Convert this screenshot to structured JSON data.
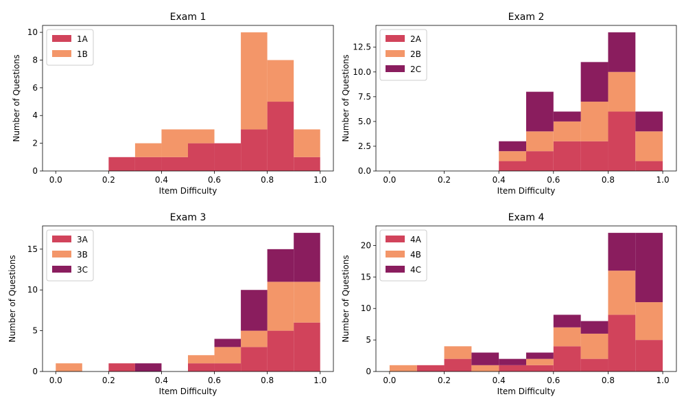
{
  "chart_data": [
    {
      "type": "histogram",
      "title": "Exam 1",
      "xlabel": "Item Difficulty",
      "ylabel": "Number of Questions",
      "bins": [
        0,
        0.1,
        0.2,
        0.3,
        0.4,
        0.5,
        0.6,
        0.7,
        0.8,
        0.9,
        1.0
      ],
      "series": [
        {
          "name": "1A",
          "color": "#d1435b",
          "values": [
            0,
            0,
            1,
            1,
            1,
            2,
            2,
            3,
            5,
            1
          ]
        },
        {
          "name": "1B",
          "color": "#f39669",
          "values": [
            0,
            0,
            0,
            1,
            2,
            1,
            0,
            7,
            3,
            2
          ]
        }
      ],
      "xlim": [
        -0.05,
        1.05
      ],
      "xticks": [
        {
          "value": 0,
          "label": "0.0"
        },
        0.2,
        0.4,
        0.6,
        0.8,
        {
          "value": 1,
          "label": "1.0"
        }
      ],
      "ylim": [
        0,
        10.5
      ],
      "yticks": [
        0,
        2,
        4,
        6,
        8,
        10
      ],
      "legend": "upper left"
    },
    {
      "type": "histogram",
      "title": "Exam 2",
      "xlabel": "Item Difficulty",
      "ylabel": "Number of Questions",
      "bins": [
        0,
        0.1,
        0.2,
        0.3,
        0.4,
        0.5,
        0.6,
        0.7,
        0.8,
        0.9,
        1.0
      ],
      "series": [
        {
          "name": "2A",
          "color": "#d1435b",
          "values": [
            0,
            0,
            0,
            0,
            1,
            2,
            3,
            3,
            6,
            1
          ]
        },
        {
          "name": "2B",
          "color": "#f39669",
          "values": [
            0,
            0,
            0,
            0,
            1,
            2,
            2,
            4,
            4,
            3
          ]
        },
        {
          "name": "2C",
          "color": "#8a1d5e",
          "values": [
            0,
            0,
            0,
            0,
            1,
            4,
            1,
            4,
            4,
            2
          ]
        }
      ],
      "xlim": [
        -0.05,
        1.05
      ],
      "xticks": [
        {
          "value": 0,
          "label": "0.0"
        },
        0.2,
        0.4,
        0.6,
        0.8,
        {
          "value": 1,
          "label": "1.0"
        }
      ],
      "ylim": [
        0,
        14.7
      ],
      "yticks": [
        {
          "value": 0,
          "label": "0.0"
        },
        2.5,
        {
          "value": 5,
          "label": "5.0"
        },
        7.5,
        {
          "value": 10,
          "label": "10.0"
        },
        12.5
      ],
      "legend": "upper left"
    },
    {
      "type": "histogram",
      "title": "Exam 3",
      "xlabel": "Item Difficulty",
      "ylabel": "Number of Questions",
      "bins": [
        0,
        0.1,
        0.2,
        0.3,
        0.4,
        0.5,
        0.6,
        0.7,
        0.8,
        0.9,
        1.0
      ],
      "series": [
        {
          "name": "3A",
          "color": "#d1435b",
          "values": [
            0,
            0,
            1,
            0,
            0,
            1,
            1,
            3,
            5,
            6
          ]
        },
        {
          "name": "3B",
          "color": "#f39669",
          "values": [
            1,
            0,
            0,
            0,
            0,
            1,
            2,
            2,
            6,
            5
          ]
        },
        {
          "name": "3C",
          "color": "#8a1d5e",
          "values": [
            0,
            0,
            0,
            1,
            0,
            0,
            1,
            5,
            4,
            6
          ]
        }
      ],
      "xlim": [
        -0.05,
        1.05
      ],
      "xticks": [
        {
          "value": 0,
          "label": "0.0"
        },
        0.2,
        0.4,
        0.6,
        0.8,
        {
          "value": 1,
          "label": "1.0"
        }
      ],
      "ylim": [
        0,
        17.85
      ],
      "yticks": [
        0,
        5,
        10,
        15
      ],
      "legend": "upper left"
    },
    {
      "type": "histogram",
      "title": "Exam 4",
      "xlabel": "Item Difficulty",
      "ylabel": "Number of Questions",
      "bins": [
        0,
        0.1,
        0.2,
        0.3,
        0.4,
        0.5,
        0.6,
        0.7,
        0.8,
        0.9,
        1.0
      ],
      "series": [
        {
          "name": "4A",
          "color": "#d1435b",
          "values": [
            0,
            1,
            2,
            0,
            1,
            1,
            4,
            2,
            9,
            5
          ]
        },
        {
          "name": "4B",
          "color": "#f39669",
          "values": [
            1,
            0,
            2,
            1,
            0,
            1,
            3,
            4,
            7,
            6
          ]
        },
        {
          "name": "4C",
          "color": "#8a1d5e",
          "values": [
            0,
            0,
            0,
            2,
            1,
            1,
            2,
            2,
            6,
            11
          ]
        }
      ],
      "xlim": [
        -0.05,
        1.05
      ],
      "xticks": [
        {
          "value": 0,
          "label": "0.0"
        },
        0.2,
        0.4,
        0.6,
        0.8,
        {
          "value": 1,
          "label": "1.0"
        }
      ],
      "ylim": [
        0,
        23.1
      ],
      "yticks": [
        0,
        5,
        10,
        15,
        20
      ],
      "legend": "upper left"
    }
  ]
}
